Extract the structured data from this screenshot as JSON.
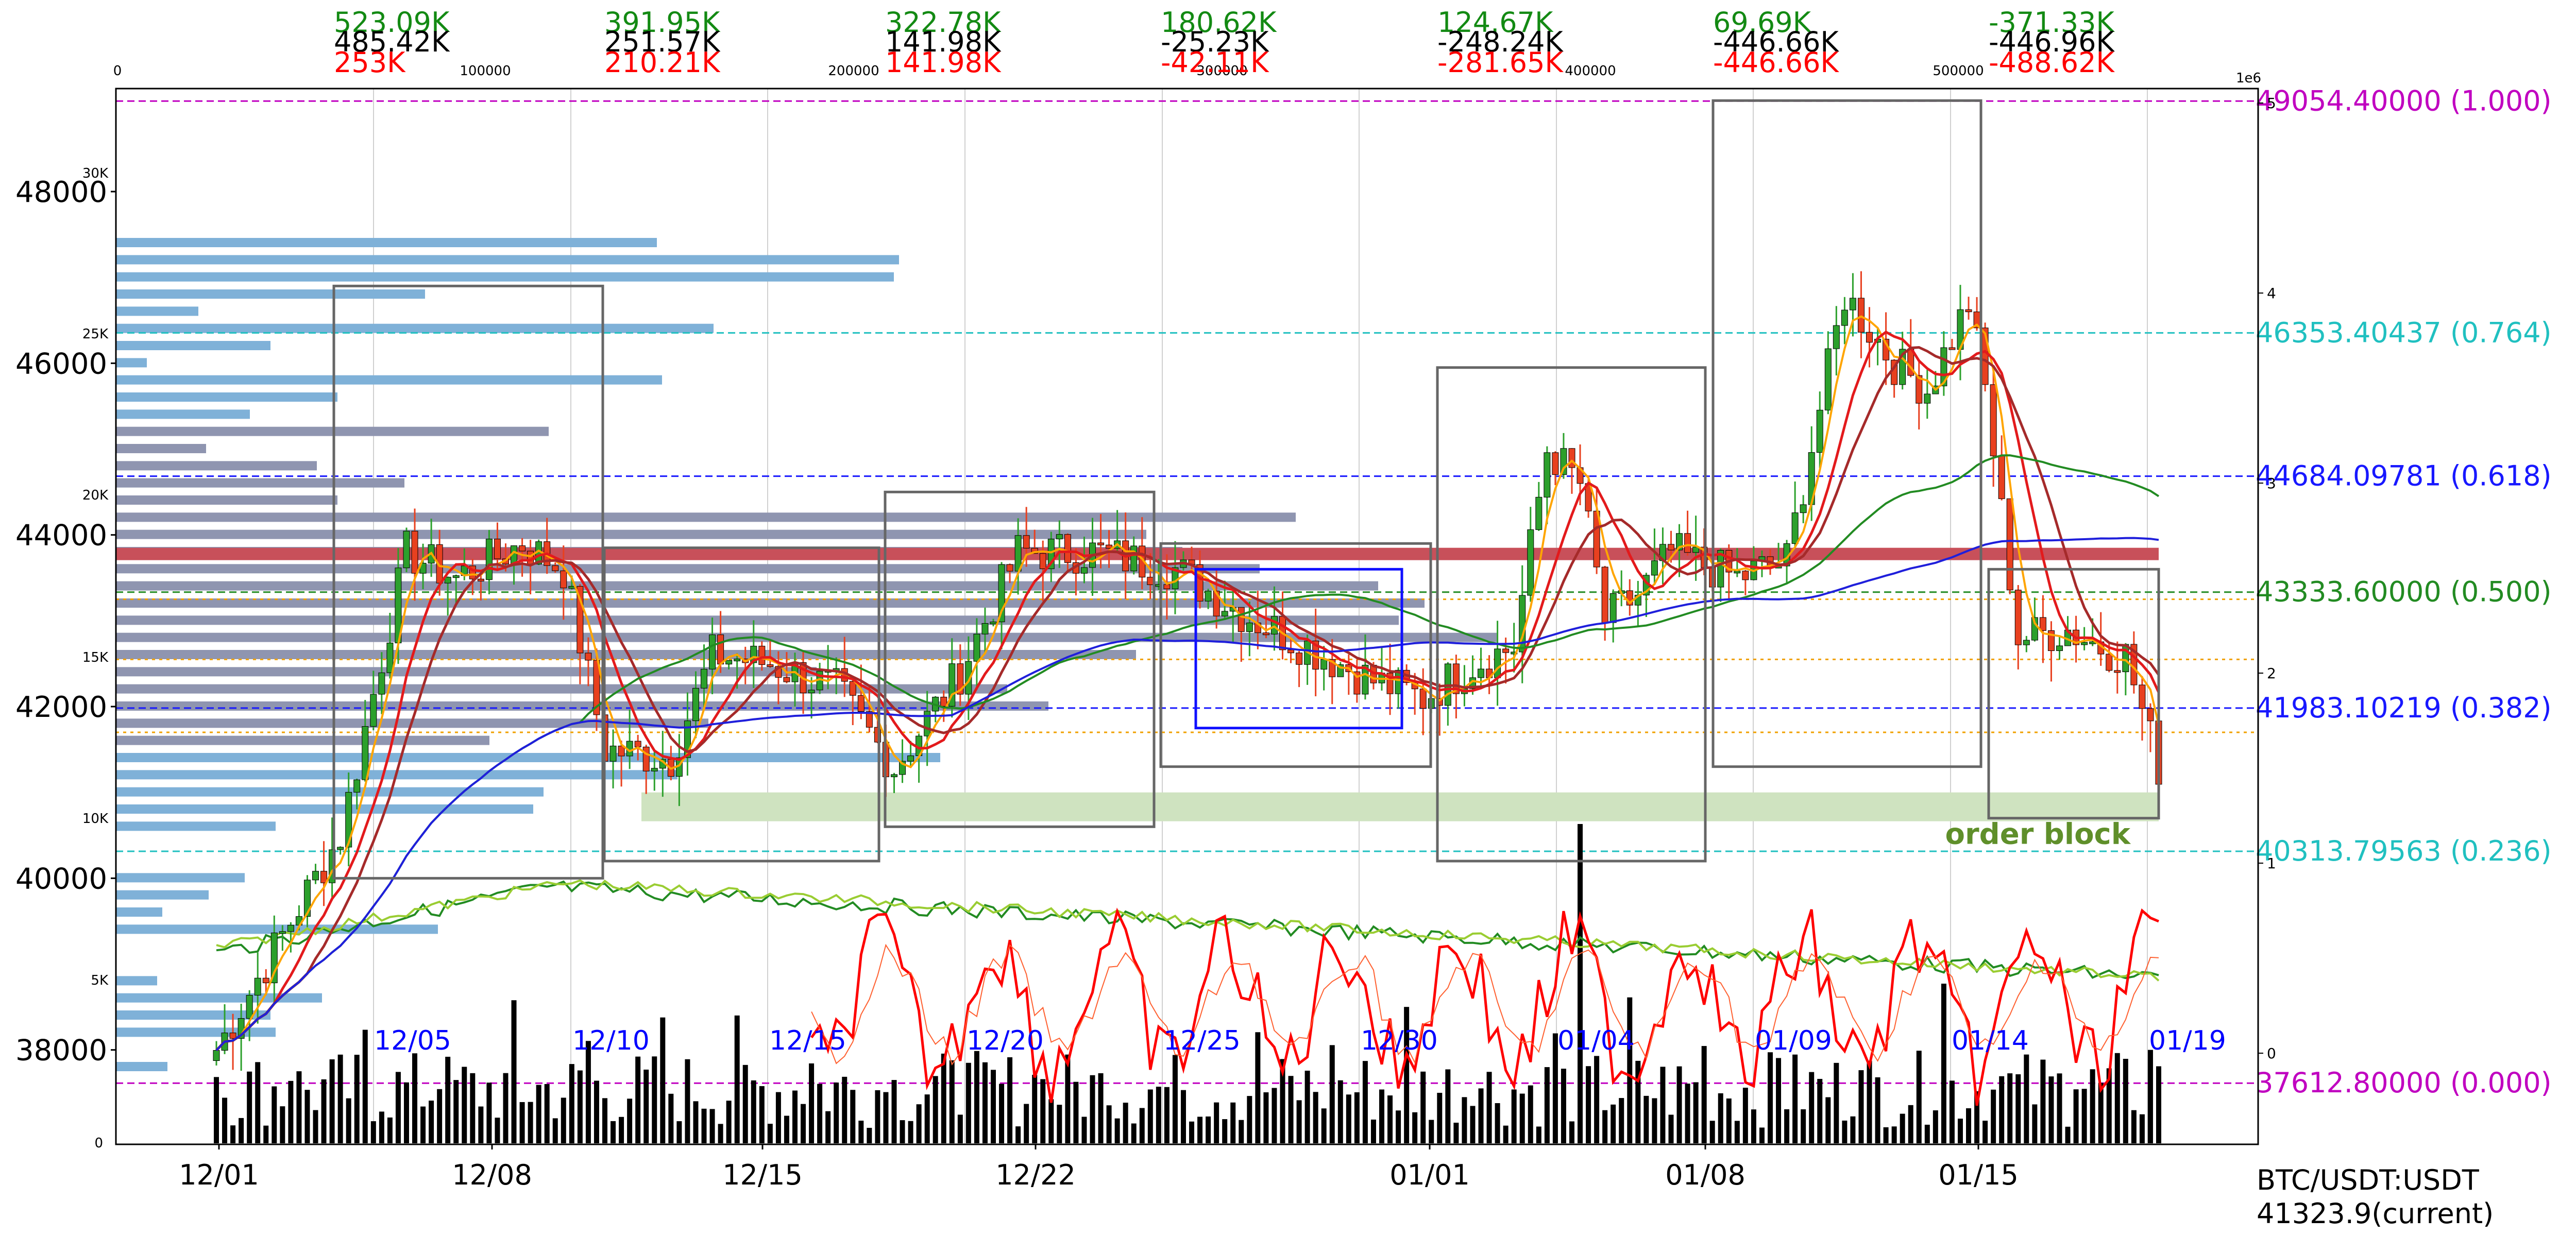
{
  "chart_data": {
    "type": "candlestick",
    "symbol_label": "BTC/USDT:USDT",
    "current_label": "41323.9(current)",
    "colors": {
      "up": "#2ca02c",
      "down": "#e8401f",
      "ema_fast": "#ffa500",
      "ema_mid": "#e31a1c",
      "ema_slow": "#a52a2a",
      "ma_long": "#228b22",
      "ma_longest": "#1f1fdb",
      "volume": "#000000",
      "volume_profile_up": "#7fb1d8",
      "volume_profile_mix": "#8f95b0",
      "poc_bar": "#c8505a",
      "box": "#666666",
      "blue_box": "#1010ff",
      "order_block": "#cfe3c0",
      "order_block_text": "#5f8f2a",
      "fib_1000": "#c000c0",
      "fib_0764": "#20c0c0",
      "fib_0618": "#1818ff",
      "fib_0500": "#228b22",
      "fib_0382": "#1818ff",
      "fib_0236": "#20c0c0",
      "fib_0000": "#c000c0"
    },
    "price_axis": {
      "min": 36900,
      "max": 49200,
      "ticks": [
        "38000",
        "40000",
        "42000",
        "44000",
        "46000",
        "48000"
      ]
    },
    "date_axis": {
      "ticks": [
        "12/01",
        "12/08",
        "12/15",
        "12/22",
        "01/01",
        "01/08",
        "01/15"
      ]
    },
    "inner_date_labels": [
      "12/05",
      "12/10",
      "12/15",
      "12/20",
      "12/25",
      "12/30",
      "01/04",
      "01/09",
      "01/14",
      "01/19"
    ],
    "volume_axis_top": [
      "0",
      "100000",
      "200000",
      "300000",
      "400000",
      "500000"
    ],
    "volume_axis_scale": "1e6",
    "right_axis_ticks": [
      "0",
      "1",
      "2",
      "3",
      "4",
      "5"
    ],
    "left_inner_ticks": [
      "5K",
      "10K",
      "15K",
      "20K",
      "25K",
      "30K"
    ],
    "volume_left_tick": "0",
    "fib_levels": [
      {
        "price": 49054.4,
        "label": "49054.40000 (1.000)",
        "key": "fib_1000"
      },
      {
        "price": 46353.40437,
        "label": "46353.40437 (0.764)",
        "key": "fib_0764"
      },
      {
        "price": 44684.09781,
        "label": "44684.09781 (0.618)",
        "key": "fib_0618"
      },
      {
        "price": 43333.6,
        "label": "43333.60000 (0.500)",
        "key": "fib_0500"
      },
      {
        "price": 41983.10219,
        "label": "41983.10219 (0.382)",
        "key": "fib_0382"
      },
      {
        "price": 40313.79563,
        "label": "40313.79563 (0.236)",
        "key": "fib_0236"
      },
      {
        "price": 37612.8,
        "label": "37612.80000 (0.000)",
        "key": "fib_0000"
      }
    ],
    "box_stats": [
      {
        "green": "523.09K",
        "black": "485.42K",
        "red": "253K"
      },
      {
        "green": "391.95K",
        "black": "251.57K",
        "red": "210.21K"
      },
      {
        "green": "322.78K",
        "black": "141.98K",
        "red": "141.98K"
      },
      {
        "green": "180.62K",
        "black": "-25.23K",
        "red": "-42.11K"
      },
      {
        "green": "124.67K",
        "black": "-248.24K",
        "red": "-281.65K"
      },
      {
        "green": "69.69K",
        "black": "-446.66K",
        "red": "-446.66K"
      },
      {
        "green": "-371.33K",
        "black": "-446.96K",
        "red": "-488.62K"
      }
    ],
    "order_block_label": "order block",
    "grid": true
  }
}
